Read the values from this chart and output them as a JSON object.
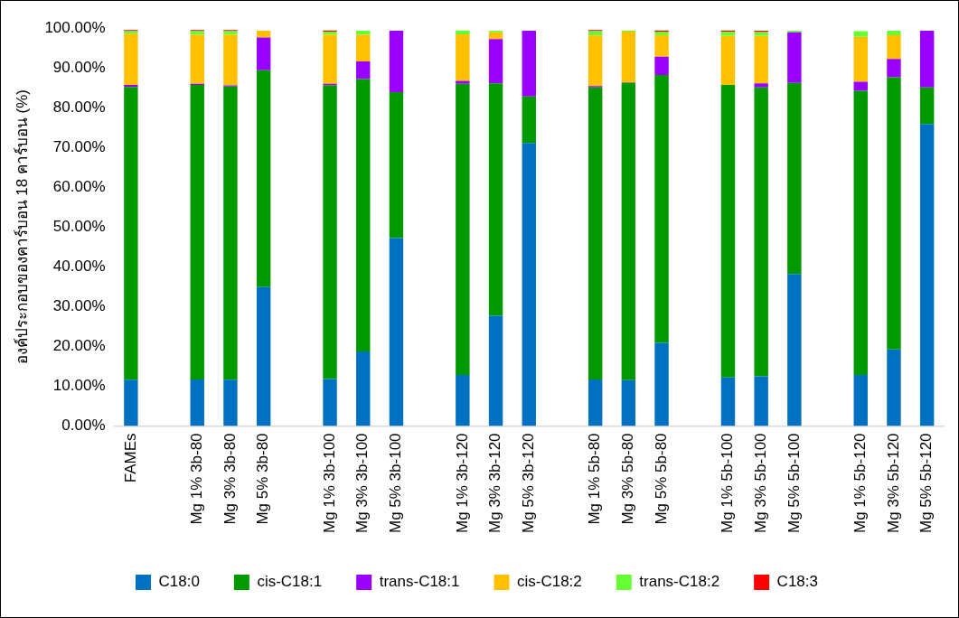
{
  "chart_data": {
    "type": "bar",
    "stacked": true,
    "ylabel": "องค์ประกอบของคาร์บอน 18 คาร์บอน (%)",
    "categories": [
      "FAMEs",
      null,
      "Mg 1% 3b-80",
      "Mg 3% 3b-80",
      "Mg 5% 3b-80",
      null,
      "Mg 1% 3b-100",
      "Mg 3% 3b-100",
      "Mg 5% 3b-100",
      null,
      "Mg 1% 3b-120",
      "Mg 3% 3b-120",
      "Mg 5% 3b-120",
      null,
      "Mg 1% 5b-80",
      "Mg 3% 5b-80",
      "Mg 5% 5b-80",
      null,
      "Mg 1% 5b-100",
      "Mg 3% 5b-100",
      "Mg 5% 5b-100",
      null,
      "Mg 1% 5b-120",
      "Mg 3% 5b-120",
      "Mg 5% 5b-120"
    ],
    "series": [
      {
        "name": "C18:0",
        "color": "#0070c0",
        "values": [
          11.6,
          null,
          11.7,
          11.6,
          34.9,
          null,
          11.8,
          18.7,
          47.2,
          null,
          12.8,
          27.7,
          71.1,
          null,
          11.7,
          11.5,
          20.9,
          null,
          12.2,
          12.5,
          38.2,
          null,
          12.8,
          19.2,
          75.9
        ]
      },
      {
        "name": "cis-C18:1",
        "color": "#009900",
        "values": [
          73.6,
          null,
          74.0,
          73.7,
          54.5,
          null,
          73.8,
          68.5,
          36.7,
          null,
          73.2,
          58.4,
          11.7,
          null,
          73.4,
          74.7,
          67.3,
          null,
          73.5,
          72.6,
          48.0,
          null,
          71.4,
          68.4,
          9.2
        ]
      },
      {
        "name": "trans-C18:1",
        "color": "#9900ff",
        "values": [
          0.5,
          null,
          0.3,
          0.3,
          8.2,
          null,
          0.4,
          4.4,
          15.4,
          null,
          0.7,
          11.1,
          16.5,
          null,
          0.3,
          0.1,
          4.6,
          null,
          0,
          1.0,
          12.7,
          null,
          2.3,
          4.6,
          14.2
        ]
      },
      {
        "name": "cis-C18:2",
        "color": "#ffc000",
        "values": [
          12.9,
          null,
          12.3,
          12.7,
          1.7,
          null,
          12.3,
          6.7,
          0,
          null,
          11.7,
          1.7,
          0,
          null,
          12.7,
          12.8,
          5.4,
          null,
          12.3,
          11.9,
          0,
          null,
          11.3,
          6.0,
          0
        ]
      },
      {
        "name": "trans-C18:2",
        "color": "#66ff33",
        "values": [
          0.6,
          null,
          0.9,
          0.9,
          0,
          null,
          0.8,
          1.0,
          0,
          null,
          1.0,
          0.4,
          0,
          null,
          1.1,
          0.3,
          0.9,
          null,
          1.1,
          1.0,
          0.4,
          null,
          1.4,
          1.1,
          0
        ]
      },
      {
        "name": "C18:3",
        "color": "#ff0000",
        "values": [
          0.3,
          null,
          0.3,
          0.3,
          0,
          null,
          0.3,
          0,
          0,
          null,
          0,
          0,
          0,
          null,
          0.3,
          0,
          0.3,
          null,
          0.3,
          0.3,
          0,
          null,
          0,
          0,
          0
        ]
      }
    ],
    "ylim": [
      0,
      100
    ],
    "yticks": [
      {
        "value": 0,
        "label": "0.00%"
      },
      {
        "value": 10,
        "label": "10.00%"
      },
      {
        "value": 20,
        "label": "20.00%"
      },
      {
        "value": 30,
        "label": "30.00%"
      },
      {
        "value": 40,
        "label": "40.00%"
      },
      {
        "value": 50,
        "label": "50.00%"
      },
      {
        "value": 60,
        "label": "60.00%"
      },
      {
        "value": 70,
        "label": "70.00%"
      },
      {
        "value": 80,
        "label": "80.00%"
      },
      {
        "value": 90,
        "label": "90.00%"
      },
      {
        "value": 100,
        "label": "100.00%"
      }
    ],
    "grid": false,
    "legend": "bottom"
  }
}
